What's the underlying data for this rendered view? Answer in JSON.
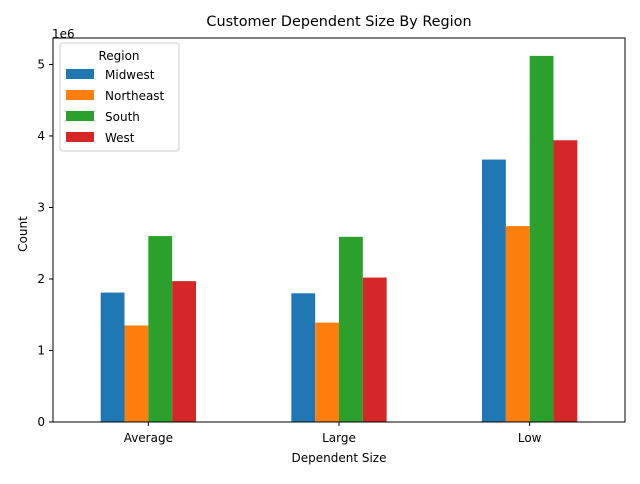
{
  "chart_data": {
    "type": "bar",
    "title": "Customer Dependent Size By Region",
    "xlabel": "Dependent Size",
    "ylabel": "Count",
    "scale_label": "1e6",
    "scale_factor": 1000000,
    "categories": [
      "Average",
      "Large",
      "Low"
    ],
    "ylim": [
      0,
      5.37
    ],
    "yticks": [
      0,
      1,
      2,
      3,
      4,
      5
    ],
    "grid": false,
    "legend": {
      "title": "Region",
      "placement": "top-left"
    },
    "series": [
      {
        "name": "Midwest",
        "color": "#1f77b4",
        "values": [
          1.81,
          1.8,
          3.67
        ]
      },
      {
        "name": "Northeast",
        "color": "#ff7f0e",
        "values": [
          1.35,
          1.39,
          2.74
        ]
      },
      {
        "name": "South",
        "color": "#2ca02c",
        "values": [
          2.6,
          2.59,
          5.12
        ]
      },
      {
        "name": "West",
        "color": "#d62728",
        "values": [
          1.97,
          2.02,
          3.94
        ]
      }
    ]
  }
}
